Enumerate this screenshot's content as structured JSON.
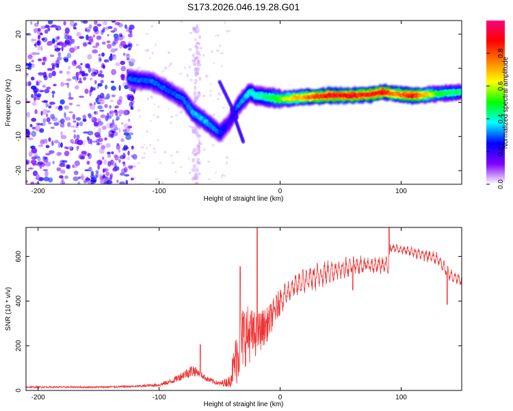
{
  "title": "S173.2026.046.19.28.G01",
  "chart_data": [
    {
      "type": "heatmap",
      "name": "spectrogram",
      "xlabel": "Height of straight line (km)",
      "ylabel": "Frequency (Hz)",
      "xlim": [
        -210,
        150
      ],
      "ylim": [
        -24,
        24
      ],
      "xticks": [
        -200,
        -100,
        0,
        100
      ],
      "yticks": [
        -20,
        -10,
        0,
        10,
        20
      ],
      "colorbar": {
        "label": "Normalized spectral amplitude",
        "range": [
          0,
          1
        ],
        "ticks": [
          0.0,
          0.2,
          0.4,
          0.6,
          0.8
        ],
        "stops": [
          "#ffffff",
          "#7f00ff",
          "#0000ff",
          "#00ffff",
          "#00ff00",
          "#ffff00",
          "#ff7f00",
          "#ff0000",
          "#ff0080"
        ]
      },
      "ridge": {
        "x": [
          -125,
          -105,
          -95,
          -80,
          -72,
          -60,
          -50,
          -42,
          -35,
          -30,
          -25,
          -20,
          -10,
          0,
          20,
          40,
          60,
          78,
          85,
          95,
          110,
          130,
          150
        ],
        "y": [
          7,
          6,
          4,
          1,
          -3,
          -6,
          -9,
          -6,
          -1,
          1,
          3,
          2,
          1.5,
          1,
          1.5,
          2,
          2,
          2.5,
          3,
          2.5,
          2,
          2.5,
          3
        ],
        "amplitude": [
          0.3,
          0.3,
          0.3,
          0.3,
          0.35,
          0.35,
          0.3,
          0.2,
          0.3,
          0.35,
          0.4,
          0.4,
          0.45,
          0.55,
          0.75,
          0.9,
          0.9,
          0.85,
          0.9,
          0.75,
          0.9,
          0.5,
          0.45
        ]
      },
      "noise_region_x": [
        -210,
        -120
      ]
    },
    {
      "type": "line",
      "name": "snr",
      "xlabel": "Height of straight line (km)",
      "ylabel": "SNR (10 * v/v)",
      "xlim": [
        -210,
        150
      ],
      "ylim": [
        0,
        730
      ],
      "xticks": [
        -200,
        -100,
        0,
        100
      ],
      "yticks": [
        0,
        200,
        400,
        600
      ],
      "color": "#ee3333",
      "envelope": {
        "x": [
          -210,
          -180,
          -150,
          -120,
          -100,
          -90,
          -80,
          -72,
          -68,
          -60,
          -50,
          -42,
          -36,
          -30,
          -20,
          -10,
          0,
          10,
          20,
          40,
          60,
          80,
          90,
          91,
          110,
          130,
          140,
          150
        ],
        "mean": [
          15,
          15,
          15,
          18,
          25,
          40,
          70,
          90,
          80,
          50,
          30,
          40,
          150,
          250,
          250,
          300,
          400,
          460,
          490,
          530,
          560,
          560,
          560,
          640,
          620,
          590,
          520,
          490
        ],
        "amplitude": [
          8,
          8,
          8,
          10,
          15,
          25,
          40,
          60,
          30,
          25,
          20,
          50,
          250,
          300,
          200,
          150,
          120,
          100,
          120,
          120,
          90,
          80,
          80,
          40,
          50,
          60,
          60,
          50
        ]
      },
      "spikes": [
        {
          "x": -66,
          "y": 205
        },
        {
          "x": -33,
          "y": 555
        },
        {
          "x": -19,
          "y": 730
        },
        {
          "x": 90,
          "y": 730
        },
        {
          "x": 60,
          "y": 450
        },
        {
          "x": 138,
          "y": 385
        }
      ]
    }
  ]
}
